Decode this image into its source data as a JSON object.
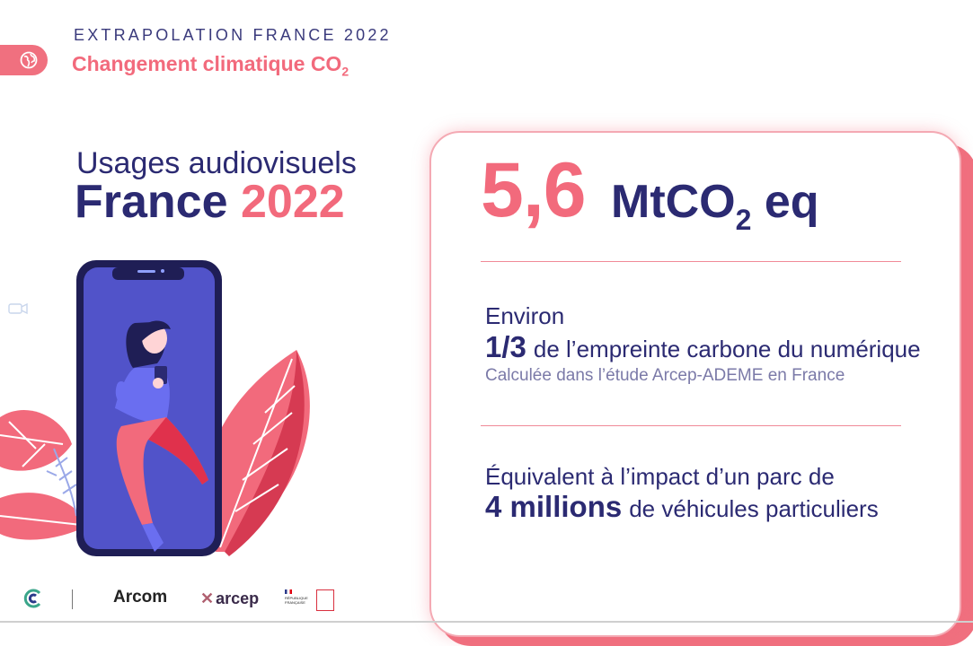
{
  "header": {
    "kicker": "EXTRAPOLATION FRANCE 2022",
    "title_main": "Changement climatique CO",
    "title_sub": "2",
    "icon": "globe-icon",
    "accent_color": "#f26a7c"
  },
  "headline": {
    "line1": "Usages audiovisuels",
    "line2_main": "France",
    "line2_year": "2022",
    "primary_color": "#2b2a72"
  },
  "card": {
    "big_number": "5,6",
    "unit_main": "MtCO",
    "unit_sub": "2",
    "unit_suffix": " eq",
    "stat1": {
      "intro": "Environ",
      "value": "1/3",
      "text": "de l’empreinte carbone du numérique",
      "note": "Calculée dans l’étude Arcep-ADEME en France"
    },
    "stat2": {
      "intro": "Équivalent à l’impact d’un parc de",
      "value": "4 millions",
      "text": "de véhicules particuliers"
    }
  },
  "illustration": {
    "subject": "woman-with-phone-illustration",
    "leaf_icon": "leaf-icon"
  },
  "footer_logos": {
    "arcom": "Arcom",
    "arcep": "arcep",
    "rf": "RÉPUBLIQUE FRANÇAISE"
  }
}
